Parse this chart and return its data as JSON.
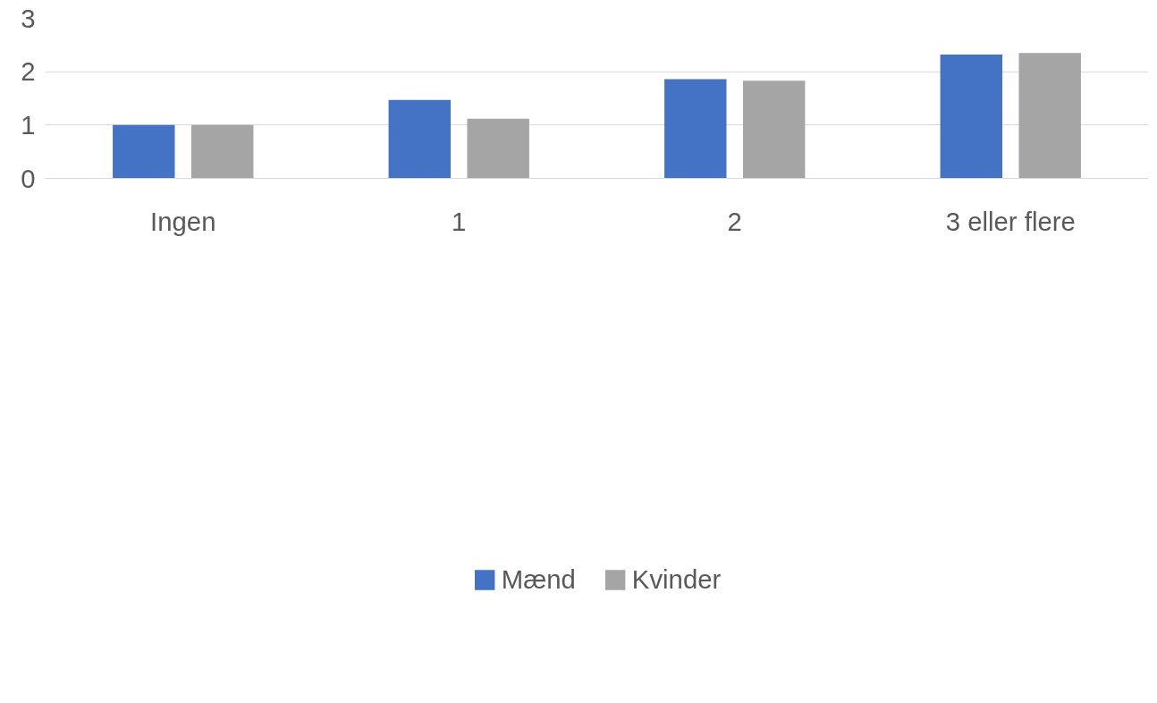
{
  "chart_data": {
    "type": "bar",
    "categories": [
      "Ingen",
      "1",
      "2",
      "3 eller flere"
    ],
    "series": [
      {
        "name": "Mænd",
        "color": "#4472c4",
        "values": [
          1.0,
          1.47,
          1.86,
          2.32
        ]
      },
      {
        "name": "Kvinder",
        "color": "#a5a5a5",
        "values": [
          1.0,
          1.12,
          1.83,
          2.35
        ]
      }
    ],
    "ylim": [
      0,
      3
    ],
    "yticks": [
      0,
      1,
      2,
      3
    ],
    "grid": "y",
    "legend": "bottom"
  }
}
